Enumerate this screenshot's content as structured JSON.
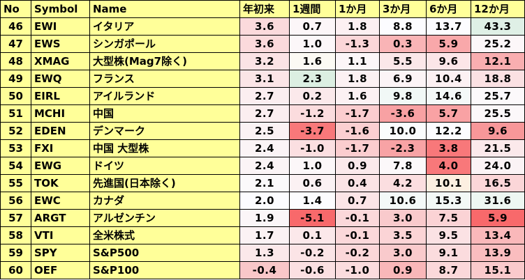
{
  "colors": {
    "header_bg": "#ffff99",
    "label_bg": "#ffff99",
    "negative_scale": "#f8696b",
    "neutral": "#fcfcff",
    "positive_scale": "#63be7b"
  },
  "headers": [
    "No",
    "Symbol",
    "Name",
    "年初来",
    "1週間",
    "1か月",
    "3か月",
    "6か月",
    "12か月"
  ],
  "rows": [
    {
      "no": "46",
      "symbol": "EWI",
      "name": "イタリア",
      "values": [
        "3.6",
        "0.7",
        "1.8",
        "8.8",
        "13.7",
        "43.3"
      ],
      "bg": [
        "#fbdadc",
        "#fcf6f8",
        "#fcf0f2",
        "#fcfcff",
        "#fcfcff",
        "#dff0e6"
      ]
    },
    {
      "no": "47",
      "symbol": "EWS",
      "name": "シンガポール",
      "values": [
        "3.6",
        "1.0",
        "-1.3",
        "0.3",
        "5.9",
        "25.2"
      ],
      "bg": [
        "#fbdadc",
        "#fcf7f9",
        "#fbd6d8",
        "#f9b4b6",
        "#f9a8aa",
        "#fcf7f9"
      ]
    },
    {
      "no": "48",
      "symbol": "XMAG",
      "name": "大型株(Mag7除く)",
      "values": [
        "3.2",
        "1.6",
        "1.1",
        "5.5",
        "9.6",
        "12.1"
      ],
      "bg": [
        "#fbe3e5",
        "#fcfaf4",
        "#fcf6f8",
        "#fbe7e9",
        "#fce6e8",
        "#f9aeb0"
      ]
    },
    {
      "no": "49",
      "symbol": "EWQ",
      "name": "フランス",
      "values": [
        "3.1",
        "2.3",
        "1.8",
        "6.9",
        "10.4",
        "18.8"
      ],
      "bg": [
        "#fbe5e7",
        "#dcefe2",
        "#fcf1f3",
        "#fcf4f6",
        "#fcf1f3",
        "#fbe1e3"
      ]
    },
    {
      "no": "50",
      "symbol": "EIRL",
      "name": "アイルランド",
      "values": [
        "2.7",
        "0.2",
        "1.6",
        "9.8",
        "14.6",
        "25.7"
      ],
      "bg": [
        "#fbeef0",
        "#fbe9eb",
        "#fcf1f3",
        "#f1f8f6",
        "#f4f9f8",
        "#fcf9fb"
      ]
    },
    {
      "no": "51",
      "symbol": "MCHI",
      "name": "中国",
      "values": [
        "2.7",
        "-1.2",
        "-1.7",
        "-3.6",
        "5.7",
        "25.5"
      ],
      "bg": [
        "#fbeef0",
        "#fbdcde",
        "#fbcdcf",
        "#f8a1a3",
        "#f9a2a4",
        "#fcf8fa"
      ]
    },
    {
      "no": "52",
      "symbol": "EDEN",
      "name": "デンマーク",
      "values": [
        "2.5",
        "-3.7",
        "-1.6",
        "10.0",
        "12.2",
        "9.6"
      ],
      "bg": [
        "#fbf2f4",
        "#f8787a",
        "#fbcfd1",
        "#fafcfd",
        "#fcfcff",
        "#f89799"
      ]
    },
    {
      "no": "53",
      "symbol": "FXI",
      "name": "中国 大型株",
      "values": [
        "2.4",
        "-1.0",
        "-1.7",
        "-2.3",
        "3.8",
        "21.5"
      ],
      "bg": [
        "#fbf4f6",
        "#fbdfe1",
        "#fbcdcf",
        "#f8a3a5",
        "#f8787a",
        "#fbe9eb"
      ]
    },
    {
      "no": "54",
      "symbol": "EWG",
      "name": "ドイツ",
      "values": [
        "2.4",
        "1.0",
        "0.9",
        "7.8",
        "4.0",
        "24.0"
      ],
      "bg": [
        "#fbf4f6",
        "#fcf7f9",
        "#fbe9eb",
        "#fcf8fa",
        "#f8787a",
        "#fbf3f5"
      ]
    },
    {
      "no": "55",
      "symbol": "TOK",
      "name": "先進国(日本除く)",
      "values": [
        "2.1",
        "0.6",
        "0.4",
        "4.2",
        "10.1",
        "16.5"
      ],
      "bg": [
        "#fbf9fb",
        "#fbf1f3",
        "#fbe3e5",
        "#fbdee0",
        "#fcefe1",
        "#fbd6d8"
      ]
    },
    {
      "no": "56",
      "symbol": "EWC",
      "name": "カナダ",
      "values": [
        "2.0",
        "1.4",
        "0.7",
        "10.6",
        "15.3",
        "31.6"
      ],
      "bg": [
        "#fcfcff",
        "#fcfcfe",
        "#fbe5e7",
        "#f4f9f8",
        "#f3f9f6",
        "#eef7f2"
      ]
    },
    {
      "no": "57",
      "symbol": "ARGT",
      "name": "アルゼンチン",
      "values": [
        "1.9",
        "-5.1",
        "-0.1",
        "3.0",
        "7.5",
        "5.9"
      ],
      "bg": [
        "#fbf6f8",
        "#f8696b",
        "#fbd8da",
        "#f9cacc",
        "#fbd3d5",
        "#f8696b"
      ]
    },
    {
      "no": "58",
      "symbol": "VTI",
      "name": "全米株式",
      "values": [
        "1.7",
        "0.1",
        "-0.1",
        "3.5",
        "9.5",
        "13.4"
      ],
      "bg": [
        "#fbf2f4",
        "#fbe8ea",
        "#fbd8da",
        "#fbd4d6",
        "#fbe2e4",
        "#fab8ba"
      ]
    },
    {
      "no": "59",
      "symbol": "SPY",
      "name": "S&P500",
      "values": [
        "1.3",
        "-0.2",
        "-0.2",
        "3.0",
        "9.1",
        "13.9"
      ],
      "bg": [
        "#fbe8ea",
        "#fbe4e6",
        "#fbd7d9",
        "#f9cacc",
        "#fbdcde",
        "#fabdbf"
      ]
    },
    {
      "no": "60",
      "symbol": "OEF",
      "name": "S&P100",
      "values": [
        "-0.4",
        "-0.6",
        "-1.0",
        "0.9",
        "8.7",
        "15.1"
      ],
      "bg": [
        "#f9c7c9",
        "#fbe0e2",
        "#fbdcde",
        "#f9b7b9",
        "#fbd8da",
        "#facacc"
      ]
    }
  ]
}
